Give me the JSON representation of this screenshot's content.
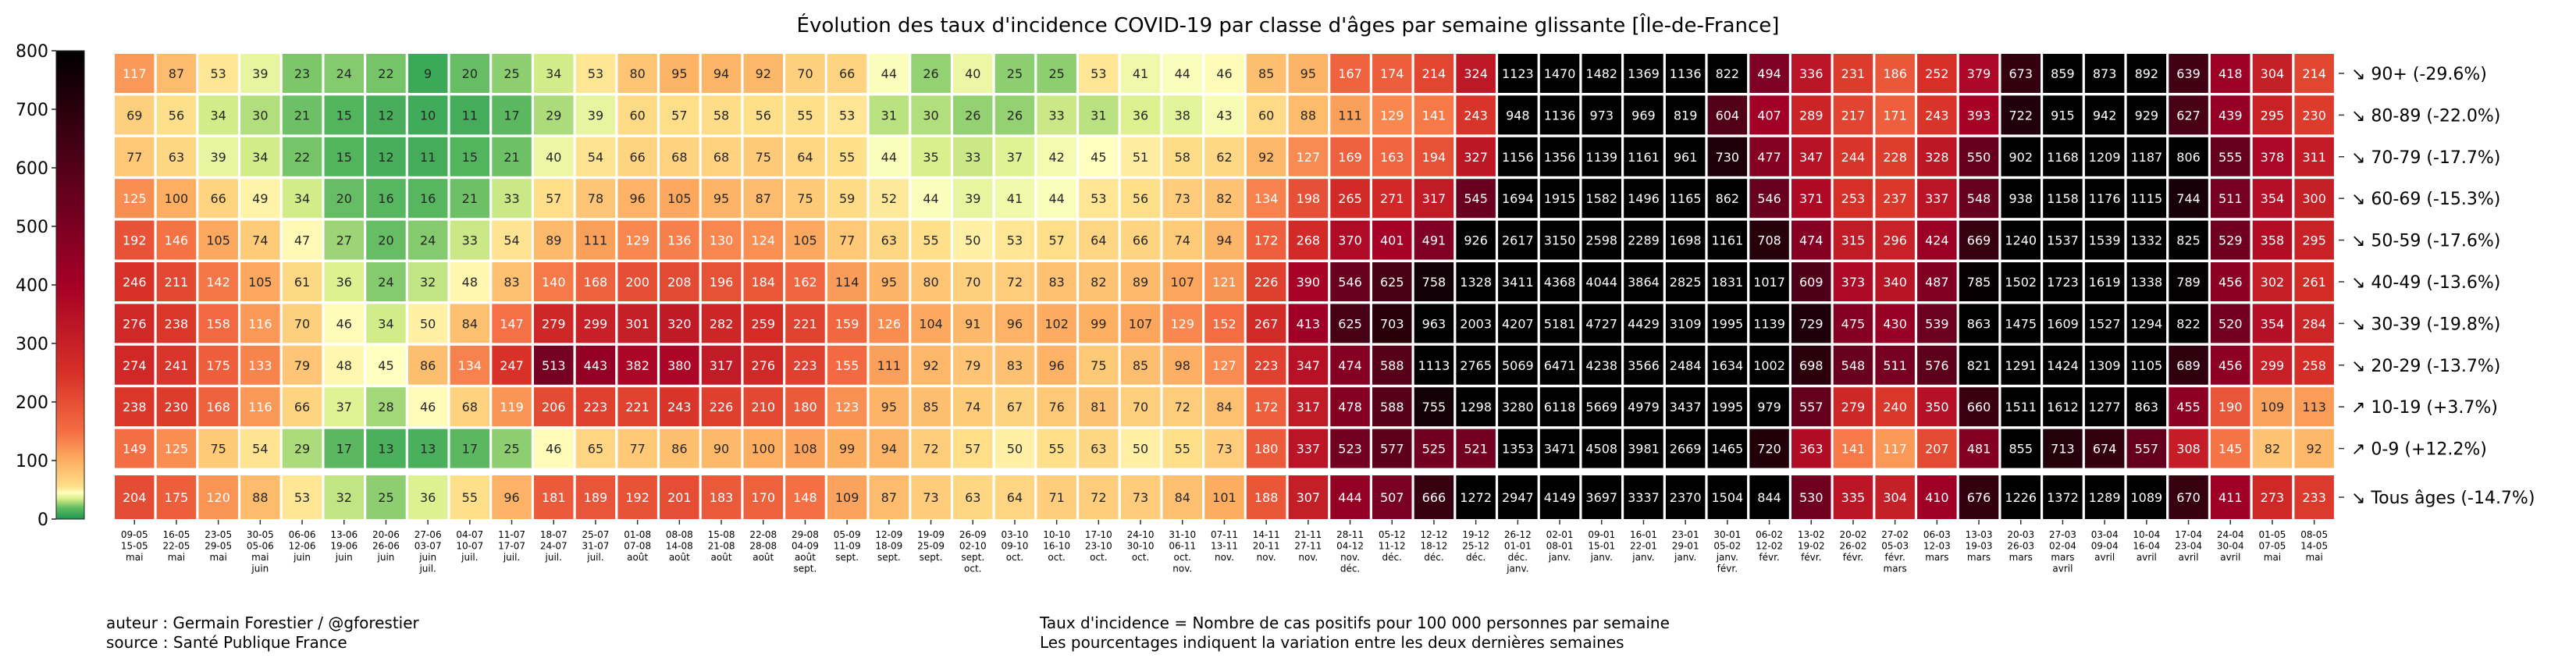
{
  "chart_data": {
    "type": "heatmap",
    "title": "Évolution des taux d'incidence COVID-19 par classe d'âges par semaine glissante [Île-de-France]",
    "colorbar": {
      "range": [
        0,
        800
      ],
      "ticks": [
        0,
        100,
        200,
        300,
        400,
        500,
        600,
        700,
        800
      ],
      "colormap": [
        "#1a9850",
        "#66bd63",
        "#d9ef8b",
        "#ffffbf",
        "#fee08b",
        "#fdae61",
        "#f46d43",
        "#d73027",
        "#a50026",
        "#67001f",
        "#000000"
      ]
    },
    "x": [
      [
        "09-05",
        "15-05",
        "mai"
      ],
      [
        "16-05",
        "22-05",
        "mai"
      ],
      [
        "23-05",
        "29-05",
        "mai"
      ],
      [
        "30-05",
        "05-06",
        "mai",
        "juin"
      ],
      [
        "06-06",
        "12-06",
        "juin"
      ],
      [
        "13-06",
        "19-06",
        "juin"
      ],
      [
        "20-06",
        "26-06",
        "juin"
      ],
      [
        "27-06",
        "03-07",
        "juin",
        "juil."
      ],
      [
        "04-07",
        "10-07",
        "juil."
      ],
      [
        "11-07",
        "17-07",
        "juil."
      ],
      [
        "18-07",
        "24-07",
        "juil."
      ],
      [
        "25-07",
        "31-07",
        "juil."
      ],
      [
        "01-08",
        "07-08",
        "août"
      ],
      [
        "08-08",
        "14-08",
        "août"
      ],
      [
        "15-08",
        "21-08",
        "août"
      ],
      [
        "22-08",
        "28-08",
        "août"
      ],
      [
        "29-08",
        "04-09",
        "août",
        "sept."
      ],
      [
        "05-09",
        "11-09",
        "sept."
      ],
      [
        "12-09",
        "18-09",
        "sept."
      ],
      [
        "19-09",
        "25-09",
        "sept."
      ],
      [
        "26-09",
        "02-10",
        "sept.",
        "oct."
      ],
      [
        "03-10",
        "09-10",
        "oct."
      ],
      [
        "10-10",
        "16-10",
        "oct."
      ],
      [
        "17-10",
        "23-10",
        "oct."
      ],
      [
        "24-10",
        "30-10",
        "oct."
      ],
      [
        "31-10",
        "06-11",
        "oct.",
        "nov."
      ],
      [
        "07-11",
        "13-11",
        "nov."
      ],
      [
        "14-11",
        "20-11",
        "nov."
      ],
      [
        "21-11",
        "27-11",
        "nov."
      ],
      [
        "28-11",
        "04-12",
        "nov.",
        "déc."
      ],
      [
        "05-12",
        "11-12",
        "déc."
      ],
      [
        "12-12",
        "18-12",
        "déc."
      ],
      [
        "19-12",
        "25-12",
        "déc."
      ],
      [
        "26-12",
        "01-01",
        "déc.",
        "janv."
      ],
      [
        "02-01",
        "08-01",
        "janv."
      ],
      [
        "09-01",
        "15-01",
        "janv."
      ],
      [
        "16-01",
        "22-01",
        "janv."
      ],
      [
        "23-01",
        "29-01",
        "janv."
      ],
      [
        "30-01",
        "05-02",
        "janv.",
        "févr."
      ],
      [
        "06-02",
        "12-02",
        "févr."
      ],
      [
        "13-02",
        "19-02",
        "févr."
      ],
      [
        "20-02",
        "26-02",
        "févr."
      ],
      [
        "27-02",
        "05-03",
        "févr.",
        "mars"
      ],
      [
        "06-03",
        "12-03",
        "mars"
      ],
      [
        "13-03",
        "19-03",
        "mars"
      ],
      [
        "20-03",
        "26-03",
        "mars"
      ],
      [
        "27-03",
        "02-04",
        "mars",
        "avril"
      ],
      [
        "03-04",
        "09-04",
        "avril"
      ],
      [
        "10-04",
        "16-04",
        "avril"
      ],
      [
        "17-04",
        "23-04",
        "avril"
      ],
      [
        "24-04",
        "30-04",
        "avril"
      ],
      [
        "01-05",
        "07-05",
        "mai"
      ],
      [
        "08-05",
        "14-05",
        "mai"
      ]
    ],
    "rows": [
      {
        "label": "↘ 90+ (-29.6%)",
        "values": [
          117,
          87,
          53,
          39,
          23,
          24,
          22,
          9,
          20,
          25,
          34,
          53,
          80,
          95,
          94,
          92,
          70,
          66,
          44,
          26,
          40,
          25,
          25,
          53,
          41,
          44,
          46,
          85,
          95,
          167,
          174,
          214,
          324,
          1123,
          1470,
          1482,
          1369,
          1136,
          822,
          494,
          336,
          231,
          186,
          252,
          379,
          673,
          859,
          873,
          892,
          639,
          418,
          304,
          214
        ]
      },
      {
        "label": "↘ 80-89 (-22.0%)",
        "values": [
          69,
          56,
          34,
          30,
          21,
          15,
          12,
          10,
          11,
          17,
          29,
          39,
          60,
          57,
          58,
          56,
          55,
          53,
          31,
          30,
          26,
          26,
          33,
          31,
          36,
          38,
          43,
          60,
          88,
          111,
          129,
          141,
          243,
          948,
          1136,
          973,
          969,
          819,
          604,
          407,
          289,
          217,
          171,
          243,
          393,
          722,
          915,
          942,
          929,
          627,
          439,
          295,
          230
        ]
      },
      {
        "label": "↘ 70-79 (-17.7%)",
        "values": [
          77,
          63,
          39,
          34,
          22,
          15,
          12,
          11,
          15,
          21,
          40,
          54,
          66,
          68,
          68,
          75,
          64,
          55,
          44,
          35,
          33,
          37,
          42,
          45,
          51,
          58,
          62,
          92,
          127,
          169,
          163,
          194,
          327,
          1156,
          1356,
          1139,
          1161,
          961,
          730,
          477,
          347,
          244,
          228,
          328,
          550,
          902,
          1168,
          1209,
          1187,
          806,
          555,
          378,
          311
        ]
      },
      {
        "label": "↘ 60-69 (-15.3%)",
        "values": [
          125,
          100,
          66,
          49,
          34,
          20,
          16,
          16,
          21,
          33,
          57,
          78,
          96,
          105,
          95,
          87,
          75,
          59,
          52,
          44,
          39,
          41,
          44,
          53,
          56,
          73,
          82,
          134,
          198,
          265,
          271,
          317,
          545,
          1694,
          1915,
          1582,
          1496,
          1165,
          862,
          546,
          371,
          253,
          237,
          337,
          548,
          938,
          1158,
          1176,
          1115,
          744,
          511,
          354,
          300
        ]
      },
      {
        "label": "↘ 50-59 (-17.6%)",
        "values": [
          192,
          146,
          105,
          74,
          47,
          27,
          20,
          24,
          33,
          54,
          89,
          111,
          129,
          136,
          130,
          124,
          105,
          77,
          63,
          55,
          50,
          53,
          57,
          64,
          66,
          74,
          94,
          172,
          268,
          370,
          401,
          491,
          926,
          2617,
          3150,
          2598,
          2289,
          1698,
          1161,
          708,
          474,
          315,
          296,
          424,
          669,
          1240,
          1537,
          1539,
          1332,
          825,
          529,
          358,
          295
        ]
      },
      {
        "label": "↘ 40-49 (-13.6%)",
        "values": [
          246,
          211,
          142,
          105,
          61,
          36,
          24,
          32,
          48,
          83,
          140,
          168,
          200,
          208,
          196,
          184,
          162,
          114,
          95,
          80,
          70,
          72,
          83,
          82,
          89,
          107,
          121,
          226,
          390,
          546,
          625,
          758,
          1328,
          3411,
          4368,
          4044,
          3864,
          2825,
          1831,
          1017,
          609,
          373,
          340,
          487,
          785,
          1502,
          1723,
          1619,
          1338,
          789,
          456,
          302,
          261
        ]
      },
      {
        "label": "↘ 30-39 (-19.8%)",
        "values": [
          276,
          238,
          158,
          116,
          70,
          46,
          34,
          50,
          84,
          147,
          279,
          299,
          301,
          320,
          282,
          259,
          221,
          159,
          126,
          104,
          91,
          96,
          102,
          99,
          107,
          129,
          152,
          267,
          413,
          625,
          703,
          963,
          2003,
          4207,
          5181,
          4727,
          4429,
          3109,
          1995,
          1139,
          729,
          475,
          430,
          539,
          863,
          1475,
          1609,
          1527,
          1294,
          822,
          520,
          354,
          284
        ]
      },
      {
        "label": "↘ 20-29 (-13.7%)",
        "values": [
          274,
          241,
          175,
          133,
          79,
          48,
          45,
          86,
          134,
          247,
          513,
          443,
          382,
          380,
          317,
          276,
          223,
          155,
          111,
          92,
          79,
          83,
          96,
          75,
          85,
          98,
          127,
          223,
          347,
          474,
          588,
          1113,
          2765,
          5069,
          6471,
          4238,
          3566,
          2484,
          1634,
          1002,
          698,
          548,
          511,
          576,
          821,
          1291,
          1424,
          1309,
          1105,
          689,
          456,
          299,
          258
        ]
      },
      {
        "label": "↗ 10-19 (+3.7%)",
        "values": [
          238,
          230,
          168,
          116,
          66,
          37,
          28,
          46,
          68,
          119,
          206,
          223,
          221,
          243,
          226,
          210,
          180,
          123,
          95,
          85,
          74,
          67,
          76,
          81,
          70,
          72,
          84,
          172,
          317,
          478,
          588,
          755,
          1298,
          3280,
          6118,
          5669,
          4979,
          3437,
          1995,
          979,
          557,
          279,
          240,
          350,
          660,
          1511,
          1612,
          1277,
          863,
          455,
          190,
          109,
          113
        ]
      },
      {
        "label": "↗ 0-9 (+12.2%)",
        "values": [
          149,
          125,
          75,
          54,
          29,
          17,
          13,
          13,
          17,
          25,
          46,
          65,
          77,
          86,
          90,
          100,
          108,
          99,
          94,
          72,
          57,
          50,
          55,
          63,
          50,
          55,
          73,
          180,
          337,
          523,
          577,
          525,
          521,
          1353,
          3471,
          4508,
          3981,
          2669,
          1465,
          720,
          363,
          141,
          117,
          207,
          481,
          855,
          713,
          674,
          557,
          308,
          145,
          82,
          92
        ]
      },
      {
        "label": "↘ Tous âges (-14.7%)",
        "values": [
          204,
          175,
          120,
          88,
          53,
          32,
          25,
          36,
          55,
          96,
          181,
          189,
          192,
          201,
          183,
          170,
          148,
          109,
          87,
          73,
          63,
          64,
          71,
          72,
          73,
          84,
          101,
          188,
          307,
          444,
          507,
          666,
          1272,
          2947,
          4149,
          3697,
          3337,
          2370,
          1504,
          844,
          530,
          335,
          304,
          410,
          676,
          1226,
          1372,
          1289,
          1089,
          670,
          411,
          273,
          233
        ]
      }
    ]
  },
  "footer": {
    "author": "auteur : Germain Forestier / @gforestier",
    "source": "source : Santé Publique France",
    "definition": "Taux d'incidence = Nombre de cas positifs pour 100 000 personnes par semaine",
    "note": "Les pourcentages indiquent la variation entre les deux dernières semaines"
  }
}
